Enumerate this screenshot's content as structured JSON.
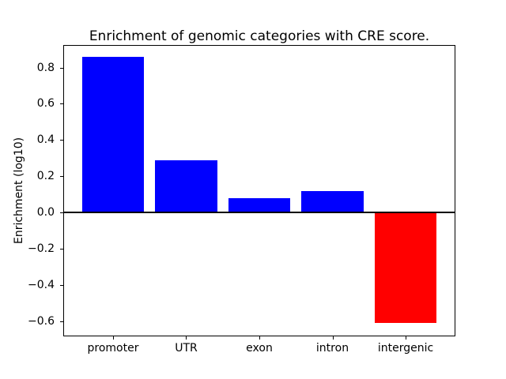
{
  "chart_data": {
    "type": "bar",
    "title": "Enrichment of genomic categories with CRE score.",
    "xlabel": "",
    "ylabel": "Enrichment (log10)",
    "categories": [
      "promoter",
      "UTR",
      "exon",
      "intron",
      "intergenic"
    ],
    "values": [
      0.86,
      0.29,
      0.08,
      0.12,
      -0.61
    ],
    "bar_colors": [
      "#0000ff",
      "#0000ff",
      "#0000ff",
      "#0000ff",
      "#ff0000"
    ],
    "positive_color": "#0000ff",
    "negative_color": "#ff0000",
    "yticks": [
      -0.6,
      -0.4,
      -0.2,
      0.0,
      0.2,
      0.4,
      0.6,
      0.8
    ],
    "ytick_labels": [
      "−0.6",
      "−0.4",
      "−0.2",
      "0.0",
      "0.2",
      "0.4",
      "0.6",
      "0.8"
    ],
    "ylim": [
      -0.68,
      0.92
    ],
    "xlim": [
      -0.67,
      4.67
    ],
    "bar_width": 0.85,
    "zero_line": true,
    "grid": false,
    "legend": null,
    "background_color": "#ffffff",
    "axes_color": "#000000"
  }
}
